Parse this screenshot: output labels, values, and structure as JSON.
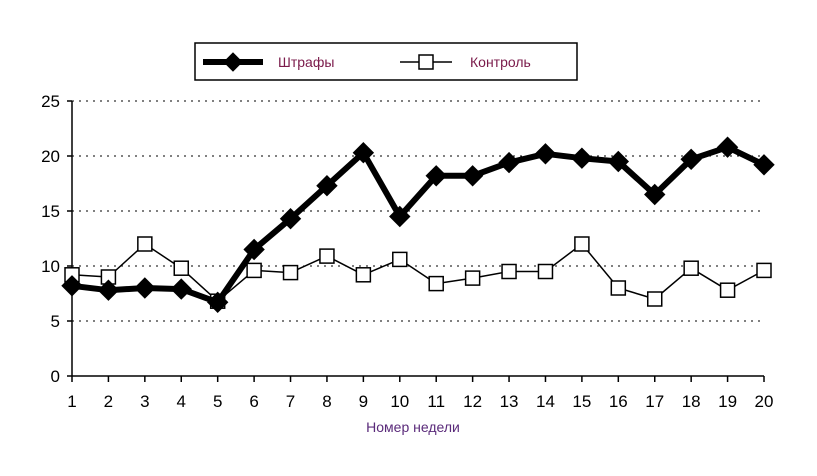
{
  "chart_data": {
    "type": "line",
    "title": "",
    "xlabel": "Номер недели",
    "ylabel": "",
    "x": [
      1,
      2,
      3,
      4,
      5,
      6,
      7,
      8,
      9,
      10,
      11,
      12,
      13,
      14,
      15,
      16,
      17,
      18,
      19,
      20
    ],
    "ylim": [
      0,
      25
    ],
    "yticks": [
      0,
      5,
      10,
      15,
      20,
      25
    ],
    "grid": "horizontal dashed",
    "legend_position": "top",
    "series": [
      {
        "name": "Штрафы",
        "marker": "filled-diamond",
        "color": "#000000",
        "values": [
          8.2,
          7.8,
          8.0,
          7.9,
          6.7,
          11.5,
          14.3,
          17.3,
          20.3,
          14.5,
          18.2,
          18.2,
          19.4,
          20.2,
          19.8,
          19.5,
          16.5,
          19.7,
          20.8,
          19.2
        ]
      },
      {
        "name": "Контроль",
        "marker": "open-square",
        "color": "#000000",
        "values": [
          9.2,
          9.0,
          12.0,
          9.8,
          6.8,
          9.6,
          9.4,
          10.9,
          9.2,
          10.6,
          8.4,
          8.9,
          9.5,
          9.5,
          12.0,
          8.0,
          7.0,
          9.8,
          7.8,
          9.6
        ]
      }
    ]
  }
}
